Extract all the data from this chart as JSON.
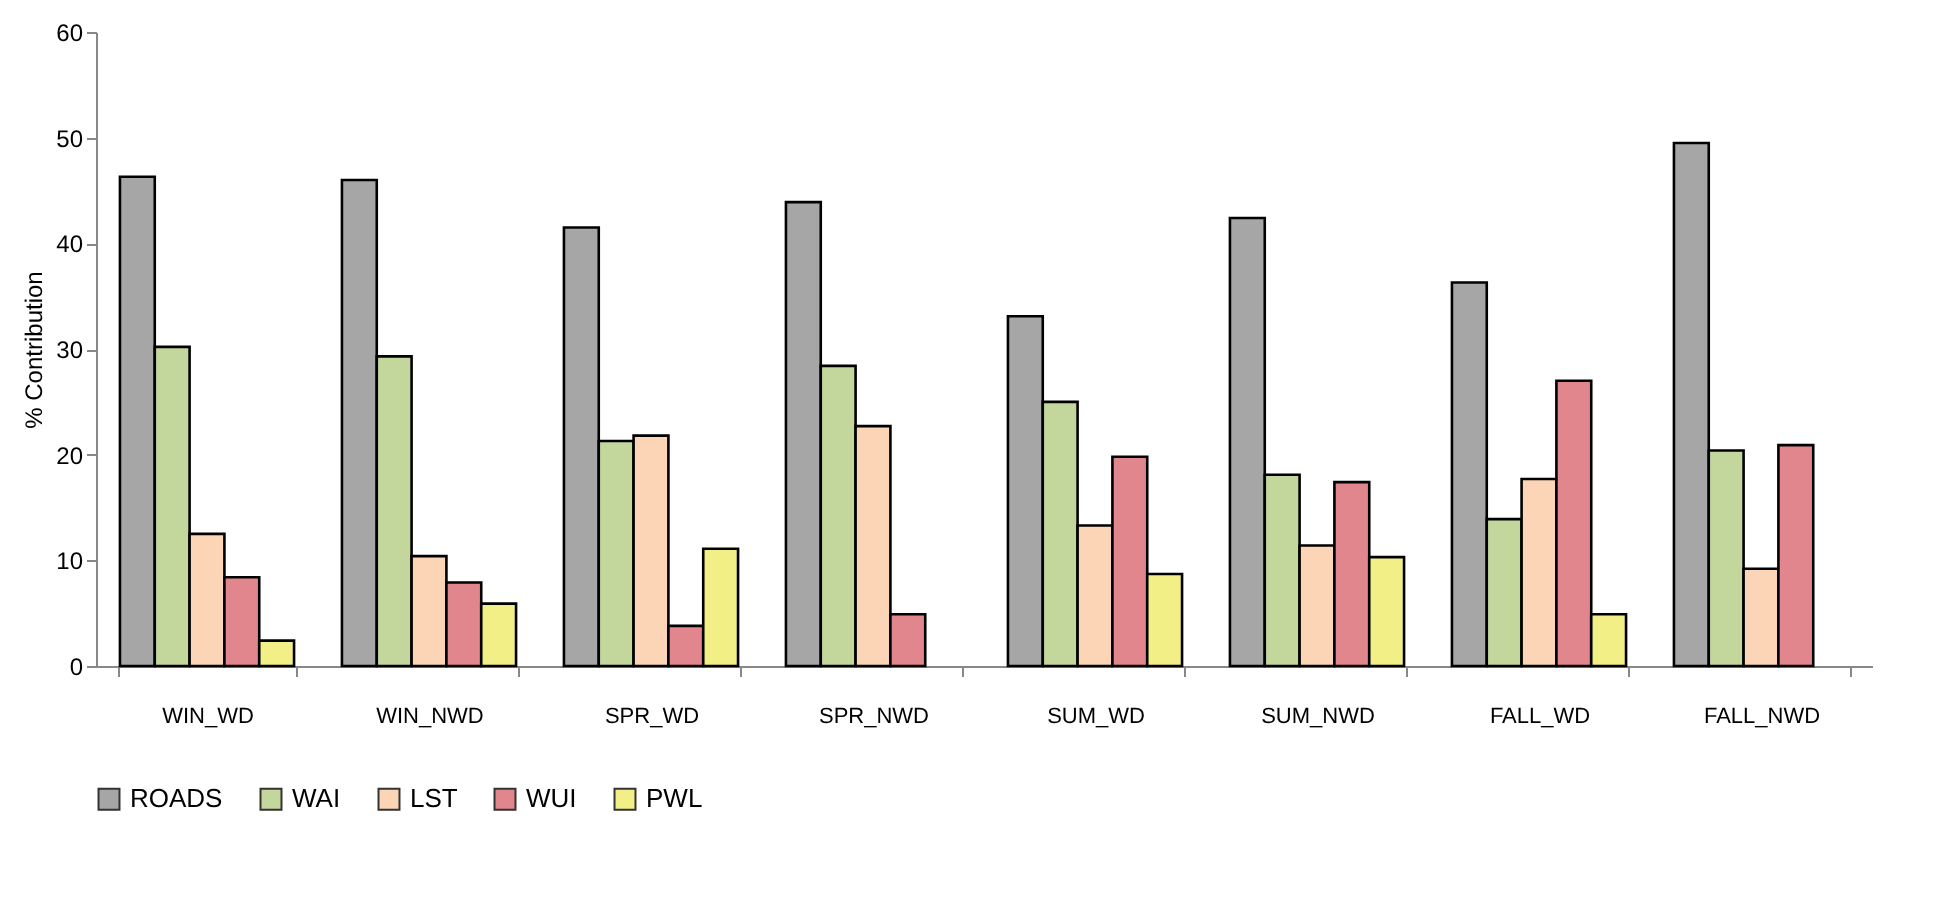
{
  "chart_data": {
    "type": "bar",
    "ylabel": "% Contribution",
    "categories": [
      "WIN_WD",
      "WIN_NWD",
      "SPR_WD",
      "SPR_NWD",
      "SUM_WD",
      "SUM_NWD",
      "FALL_WD",
      "FALL_NWD"
    ],
    "series": [
      {
        "name": "ROADS",
        "color": "#a6a6a6",
        "values": [
          46.3,
          46.0,
          41.5,
          43.9,
          33.1,
          42.4,
          36.3,
          49.5
        ]
      },
      {
        "name": "WAI",
        "color": "#c3d69b",
        "values": [
          30.2,
          29.3,
          21.3,
          28.4,
          25.0,
          18.1,
          13.9,
          20.4
        ]
      },
      {
        "name": "LST",
        "color": "#fbd5b5",
        "values": [
          12.5,
          10.4,
          21.8,
          22.7,
          13.3,
          11.4,
          17.7,
          9.2
        ]
      },
      {
        "name": "WUI",
        "color": "#e0868c",
        "values": [
          8.4,
          7.9,
          3.8,
          4.9,
          19.8,
          17.4,
          27.0,
          20.9
        ]
      },
      {
        "name": "PWL",
        "color": "#f2ef86",
        "values": [
          2.4,
          5.9,
          11.1,
          null,
          8.7,
          10.3,
          4.9,
          null
        ]
      }
    ],
    "ylim": [
      0,
      60
    ],
    "yticks": [
      0,
      10,
      20,
      30,
      40,
      50,
      60
    ],
    "grid": false,
    "legend": "bottom"
  }
}
